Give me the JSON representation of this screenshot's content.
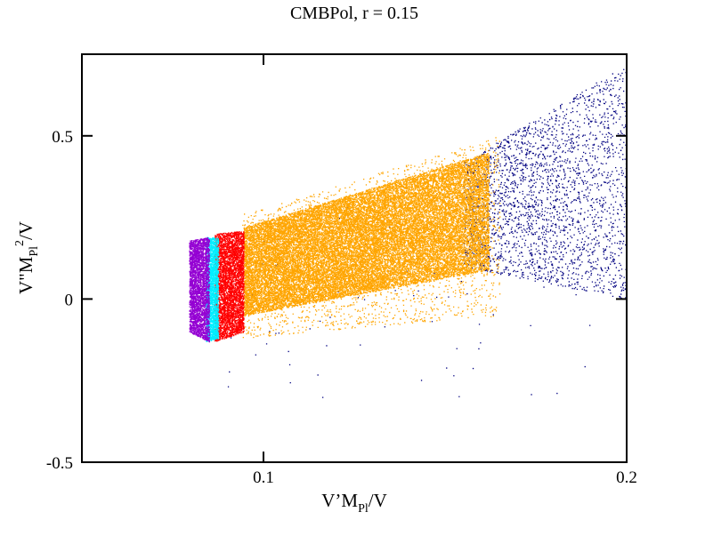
{
  "chart_data": {
    "type": "scatter",
    "title": "CMBPol, r = 0.15",
    "xlabel": {
      "main": "V’M",
      "sub": "Pl",
      "tail": "/V"
    },
    "ylabel": {
      "main": "V\"M",
      "sub": "Pl",
      "sup": "2",
      "tail": "/V"
    },
    "xlim": [
      0.05,
      0.2
    ],
    "ylim": [
      -0.5,
      0.75
    ],
    "xticks": [
      {
        "value": 0.1,
        "label": "0.1"
      },
      {
        "value": 0.2,
        "label": "0.2"
      }
    ],
    "yticks": [
      {
        "value": -0.5,
        "label": "-0.5"
      },
      {
        "value": 0,
        "label": "0"
      },
      {
        "value": 0.5,
        "label": "0.5"
      }
    ],
    "grid": false,
    "legend": "none",
    "series": [
      {
        "color": "#000080",
        "regions": [
          {
            "x": [
              0.155,
              0.2
            ],
            "y_bottom": [
              0.1,
              0.0
            ],
            "y_top": [
              0.42,
              0.72
            ],
            "count": 2600
          },
          {
            "x": [
              0.09,
              0.19
            ],
            "y_bottom": [
              -0.3,
              -0.3
            ],
            "y_top": [
              0.28,
              0.4
            ],
            "count": 90
          }
        ]
      },
      {
        "color": "#FFA500",
        "regions": [
          {
            "x": [
              0.0945,
              0.162
            ],
            "y_bottom": [
              -0.05,
              0.09
            ],
            "y_top": [
              0.22,
              0.45
            ],
            "count": 26000
          },
          {
            "x": [
              0.094,
              0.165
            ],
            "y_bottom": [
              -0.12,
              -0.05
            ],
            "y_top": [
              0.26,
              0.5
            ],
            "count": 2500
          }
        ]
      },
      {
        "color": "#FF0000",
        "regions": [
          {
            "x": [
              0.0865,
              0.0945
            ],
            "y_bottom": [
              -0.13,
              -0.1
            ],
            "y_top": [
              0.2,
              0.21
            ],
            "count": 4200
          }
        ]
      },
      {
        "color": "#00EEFF",
        "regions": [
          {
            "x": [
              0.084,
              0.0875
            ],
            "y_bottom": [
              -0.13,
              -0.12
            ],
            "y_top": [
              0.19,
              0.19
            ],
            "count": 2200
          }
        ]
      },
      {
        "color": "#9400D3",
        "regions": [
          {
            "x": [
              0.0795,
              0.085
            ],
            "y_bottom": [
              -0.1,
              -0.13
            ],
            "y_top": [
              0.18,
              0.19
            ],
            "count": 3000
          }
        ]
      }
    ]
  }
}
